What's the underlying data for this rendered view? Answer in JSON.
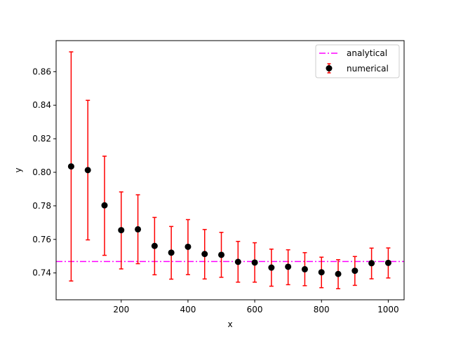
{
  "chart_data": {
    "type": "scatter",
    "xlabel": "x",
    "ylabel": "y",
    "xlim": [
      5,
      1047.5
    ],
    "ylim": [
      0.724,
      0.8785
    ],
    "x_ticks": [
      200,
      400,
      600,
      800,
      1000
    ],
    "y_ticks": [
      0.74,
      0.76,
      0.78,
      0.8,
      0.82,
      0.84,
      0.86
    ],
    "y_tick_labels": [
      "0.74",
      "0.76",
      "0.78",
      "0.80",
      "0.82",
      "0.84",
      "0.86"
    ],
    "legend_position": "top-right",
    "reference_line": {
      "name": "analytical",
      "y": 0.7468,
      "color": "#ff00ff",
      "style": "dash-dot"
    },
    "series": [
      {
        "name": "numerical",
        "marker_color": "#000000",
        "error_color": "#ff0000",
        "x": [
          50,
          100,
          150,
          200,
          250,
          300,
          350,
          400,
          450,
          500,
          550,
          600,
          650,
          700,
          750,
          800,
          850,
          900,
          950,
          1000
        ],
        "y": [
          0.8035,
          0.8013,
          0.7803,
          0.7655,
          0.766,
          0.7561,
          0.7521,
          0.7556,
          0.7513,
          0.7508,
          0.7466,
          0.7462,
          0.7432,
          0.7437,
          0.7422,
          0.7404,
          0.7394,
          0.7413,
          0.7458,
          0.746
        ],
        "y_err_low": [
          0.7352,
          0.7597,
          0.7505,
          0.7424,
          0.7455,
          0.7389,
          0.7363,
          0.739,
          0.7364,
          0.7374,
          0.7345,
          0.7345,
          0.7321,
          0.733,
          0.7324,
          0.7312,
          0.7306,
          0.7326,
          0.7365,
          0.737
        ],
        "y_err_high": [
          0.8718,
          0.8429,
          0.8096,
          0.7883,
          0.7866,
          0.7731,
          0.7677,
          0.7718,
          0.7659,
          0.7642,
          0.7588,
          0.758,
          0.7542,
          0.7538,
          0.7521,
          0.7494,
          0.7479,
          0.7498,
          0.7548,
          0.7549
        ]
      }
    ]
  }
}
